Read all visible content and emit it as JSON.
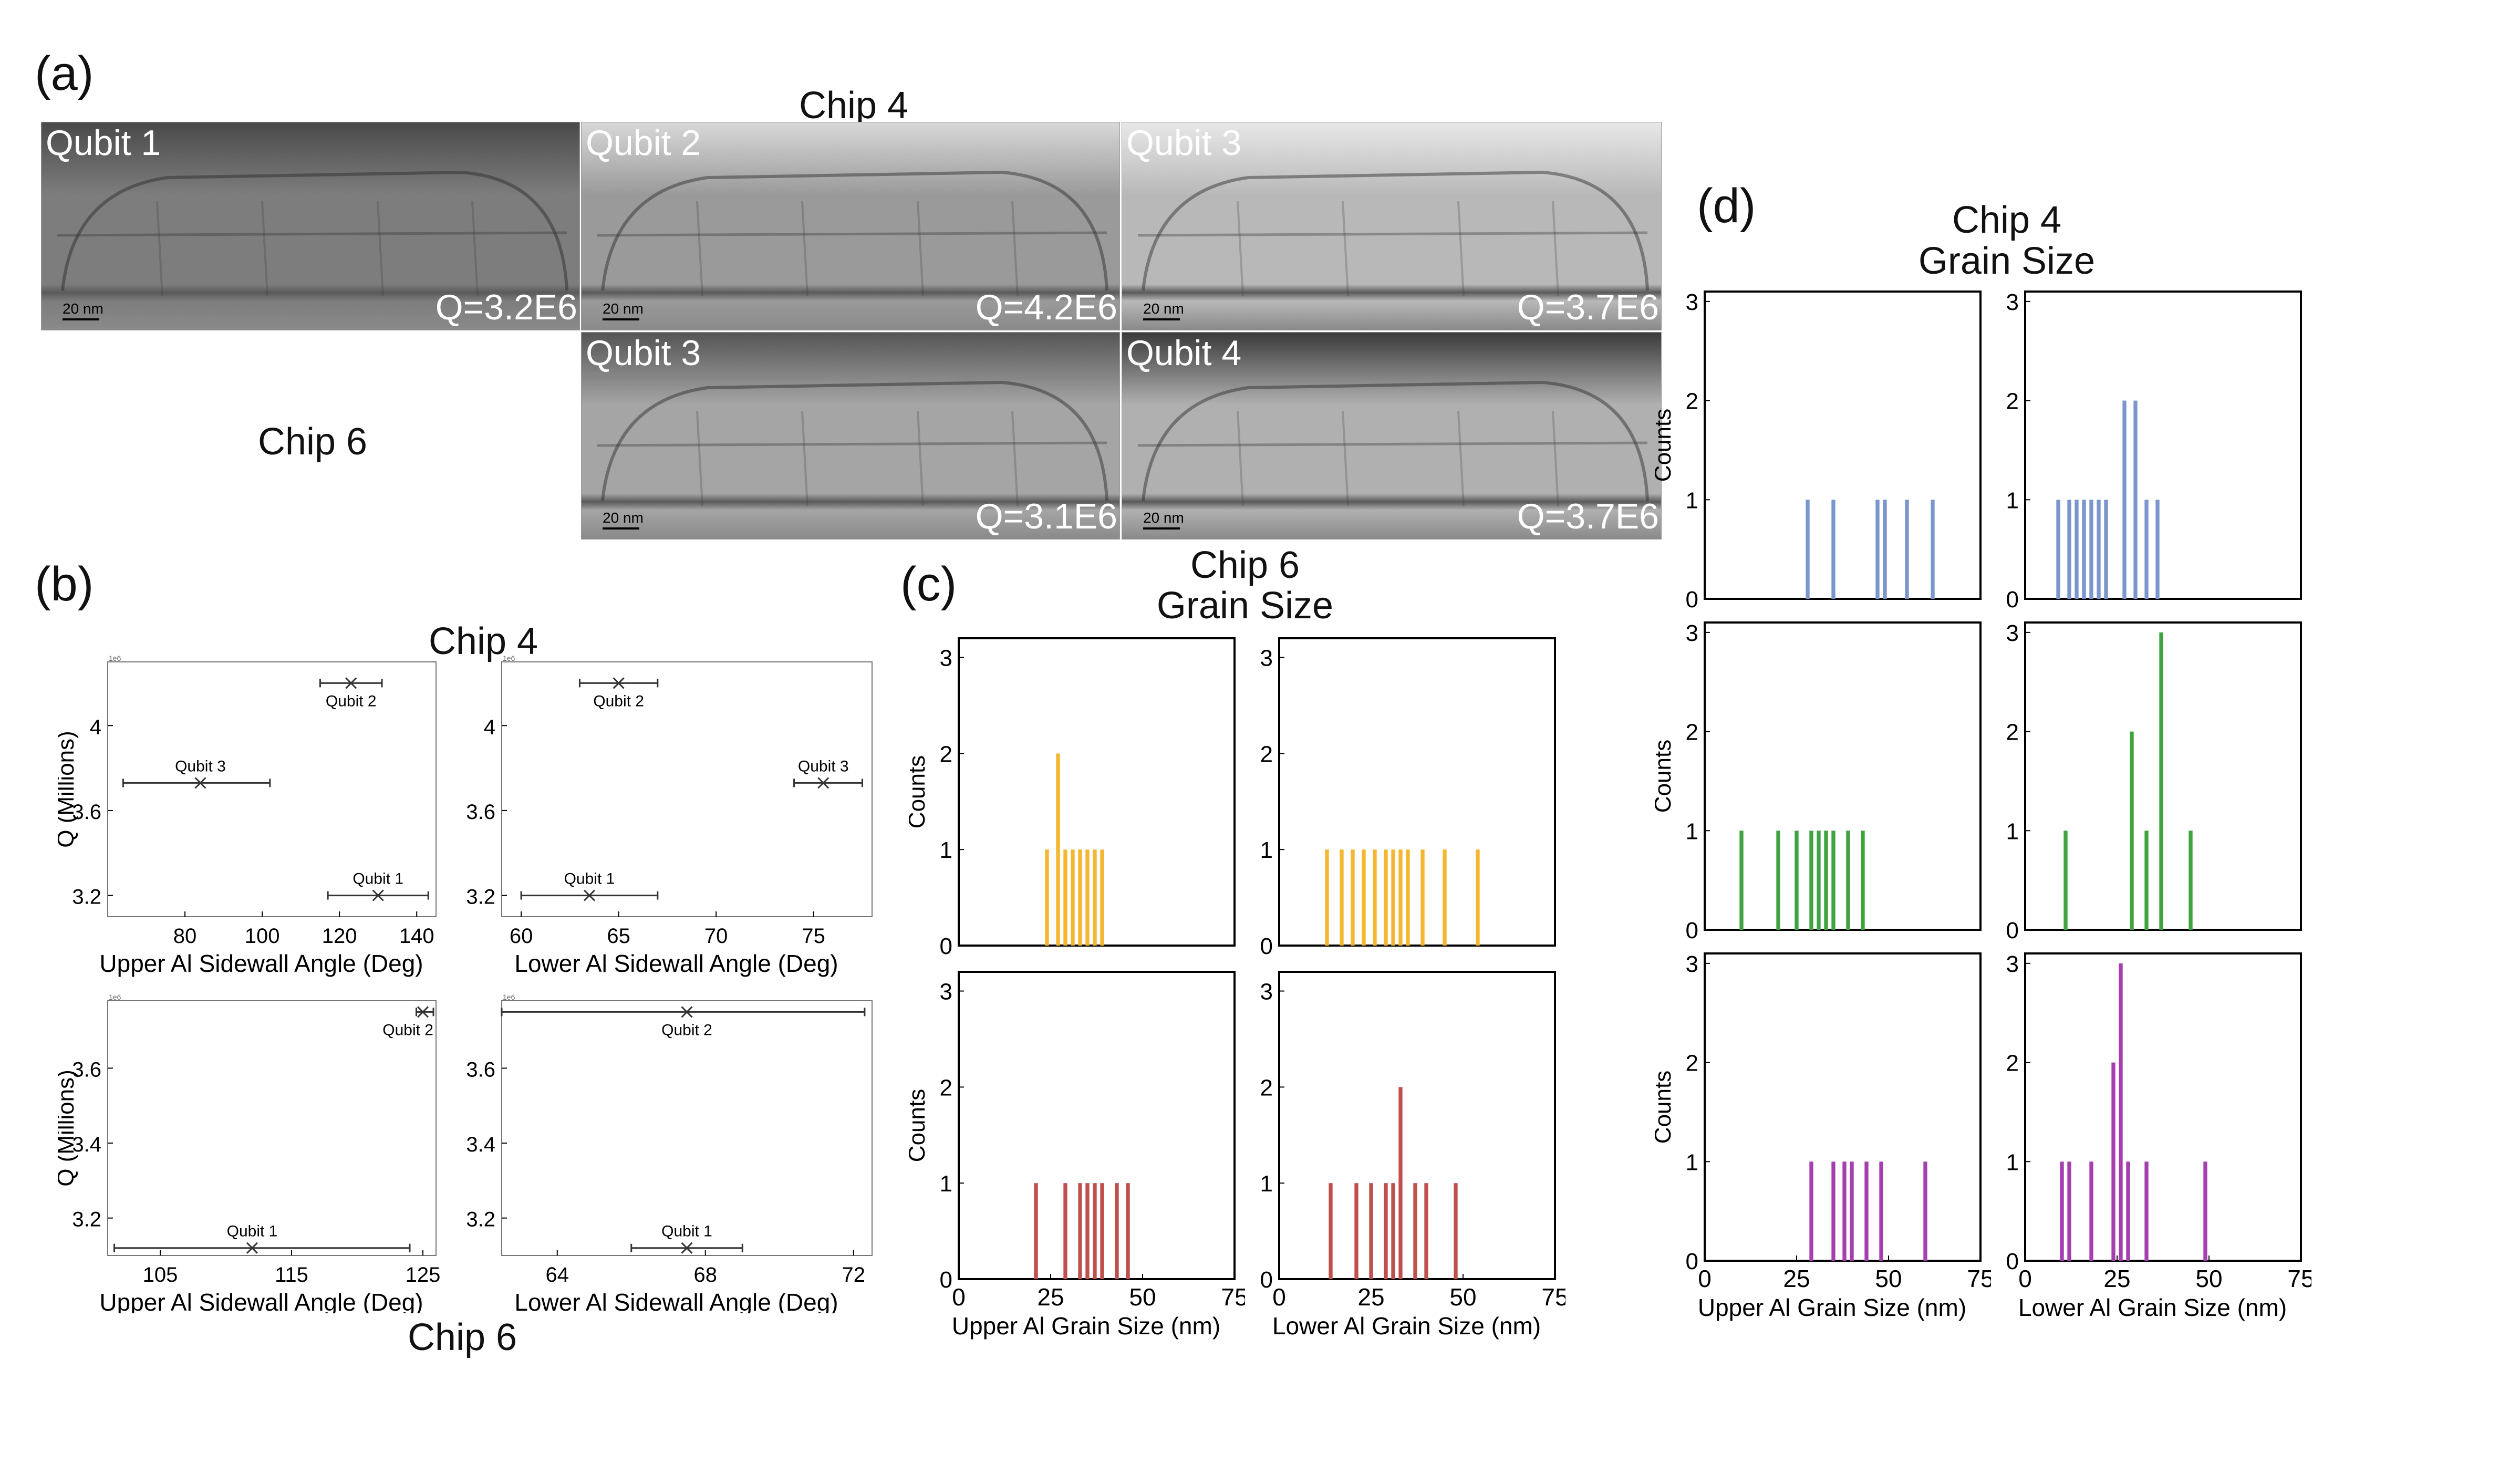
{
  "panel_a": {
    "label": "(a)",
    "chip4_title": "Chip 4",
    "chip6_title": "Chip 6",
    "scale_bar": "20 nm",
    "images": [
      {
        "qubit": "Qubit 1",
        "q": "Q=3.2E6",
        "chip": "Chip 4",
        "tone": "#7d7d7d",
        "cap": "#4a4a4a"
      },
      {
        "qubit": "Qubit 2",
        "q": "Q=4.2E6",
        "chip": "Chip 4",
        "tone": "#9a9a9a",
        "cap": "#d8d8d8"
      },
      {
        "qubit": "Qubit 3",
        "q": "Q=3.7E6",
        "chip": "Chip 4",
        "tone": "#b8b8b8",
        "cap": "#e8e8e8"
      },
      {
        "qubit": "Qubit 3",
        "q": "Q=3.1E6",
        "chip": "Chip 6",
        "tone": "#a5a5a5",
        "cap": "#555555"
      },
      {
        "qubit": "Qubit 4",
        "q": "Q=3.7E6",
        "chip": "Chip 6",
        "tone": "#b0b0b0",
        "cap": "#3a3a3a"
      }
    ]
  },
  "panel_b": {
    "label": "(b)",
    "chip4_title": "Chip 4",
    "chip6_title": "Chip 6",
    "ylabel": "Q (Millions)",
    "offset_label": "1e6"
  },
  "panel_c": {
    "label": "(c)",
    "title_line1": "Chip 6",
    "title_line2": "Grain Size"
  },
  "panel_d": {
    "label": "(d)",
    "title_line1": "Chip 4",
    "title_line2": "Grain Size"
  },
  "chart_data": [
    {
      "id": "b-chip4-upper",
      "type": "scatter",
      "xlabel": "Upper Al Sidewall Angle (Deg)",
      "ylabel": "Q (Millions)",
      "xlim": [
        60,
        145
      ],
      "ylim": [
        3.1,
        4.3
      ],
      "xticks": [
        80,
        100,
        120,
        140
      ],
      "yticks": [
        3.2,
        3.6,
        4.0
      ],
      "points": [
        {
          "label": "Qubit 2",
          "x": 123,
          "y": 4.2,
          "xerr": [
            115,
            131
          ]
        },
        {
          "label": "Qubit 3",
          "x": 84,
          "y": 3.73,
          "xerr": [
            64,
            102
          ]
        },
        {
          "label": "Qubit 1",
          "x": 130,
          "y": 3.2,
          "xerr": [
            117,
            143
          ]
        }
      ]
    },
    {
      "id": "b-chip4-lower",
      "type": "scatter",
      "xlabel": "Lower Al Sidewall Angle (Deg)",
      "ylabel": "",
      "xlim": [
        59,
        78
      ],
      "ylim": [
        3.1,
        4.3
      ],
      "xticks": [
        60,
        65,
        70,
        75
      ],
      "yticks": [
        3.2,
        3.6,
        4.0
      ],
      "points": [
        {
          "label": "Qubit 2",
          "x": 65,
          "y": 4.2,
          "xerr": [
            63,
            67
          ]
        },
        {
          "label": "Qubit 3",
          "x": 75.5,
          "y": 3.73,
          "xerr": [
            74,
            77.5
          ]
        },
        {
          "label": "Qubit 1",
          "x": 63.5,
          "y": 3.2,
          "xerr": [
            60,
            67
          ]
        }
      ]
    },
    {
      "id": "b-chip6-upper",
      "type": "scatter",
      "xlabel": "Upper Al Sidewall Angle (Deg)",
      "ylabel": "Q (Millions)",
      "xlim": [
        101,
        126
      ],
      "ylim": [
        3.1,
        3.78
      ],
      "xticks": [
        105,
        115,
        125
      ],
      "yticks": [
        3.2,
        3.4,
        3.6
      ],
      "points": [
        {
          "label": "Qubit 2",
          "x": 125,
          "y": 3.75,
          "xerr": [
            124.5,
            125.8
          ]
        },
        {
          "label": "Qubit 1",
          "x": 112,
          "y": 3.12,
          "xerr": [
            101.5,
            124
          ]
        }
      ]
    },
    {
      "id": "b-chip6-lower",
      "type": "scatter",
      "xlabel": "Lower Al Sidewall Angle (Deg)",
      "ylabel": "",
      "xlim": [
        62.5,
        72.5
      ],
      "ylim": [
        3.1,
        3.78
      ],
      "xticks": [
        64,
        68,
        72
      ],
      "yticks": [
        3.2,
        3.4,
        3.6
      ],
      "points": [
        {
          "label": "Qubit 2",
          "x": 67.5,
          "y": 3.75,
          "xerr": [
            62.5,
            72.3
          ]
        },
        {
          "label": "Qubit 1",
          "x": 67.5,
          "y": 3.12,
          "xerr": [
            66,
            69
          ]
        }
      ]
    },
    {
      "id": "c-upper-1",
      "type": "bar",
      "xlabel": "",
      "ylabel": "Counts",
      "xlim": [
        0,
        75
      ],
      "ylim": [
        0,
        3.2
      ],
      "yticks": [
        0,
        1,
        2,
        3
      ],
      "xticks": [],
      "color": "#f5b731",
      "x": [
        24,
        27,
        29,
        31,
        33,
        35,
        37,
        39
      ],
      "values": [
        1,
        2,
        1,
        1,
        1,
        1,
        1,
        1
      ]
    },
    {
      "id": "c-lower-1",
      "type": "bar",
      "xlabel": "",
      "ylabel": "",
      "xlim": [
        0,
        75
      ],
      "ylim": [
        0,
        3.2
      ],
      "yticks": [
        0,
        1,
        2,
        3
      ],
      "xticks": [],
      "color": "#f5b731",
      "x": [
        13,
        17,
        20,
        23,
        26,
        29,
        31,
        33,
        35,
        39,
        45,
        54
      ],
      "values": [
        1,
        1,
        1,
        1,
        1,
        1,
        1,
        1,
        1,
        1,
        1,
        1
      ]
    },
    {
      "id": "c-upper-2",
      "type": "bar",
      "xlabel": "Upper Al Grain Size (nm)",
      "ylabel": "Counts",
      "xlim": [
        0,
        75
      ],
      "ylim": [
        0,
        3.2
      ],
      "yticks": [
        0,
        1,
        2,
        3
      ],
      "xticks": [
        0,
        25,
        50,
        75
      ],
      "color": "#c0504d",
      "x": [
        21,
        29,
        33,
        35,
        37,
        39,
        43,
        46
      ],
      "values": [
        1,
        1,
        1,
        1,
        1,
        1,
        1,
        1
      ]
    },
    {
      "id": "c-lower-2",
      "type": "bar",
      "xlabel": "Lower Al Grain Size (nm)",
      "ylabel": "",
      "xlim": [
        0,
        75
      ],
      "ylim": [
        0,
        3.2
      ],
      "yticks": [
        0,
        1,
        2,
        3
      ],
      "xticks": [
        0,
        25,
        50,
        75
      ],
      "color": "#c0504d",
      "x": [
        14,
        21,
        25,
        29,
        31,
        33,
        37,
        40,
        48
      ],
      "values": [
        1,
        1,
        1,
        1,
        1,
        2,
        1,
        1,
        1
      ]
    },
    {
      "id": "d-upper-1",
      "type": "bar",
      "xlabel": "",
      "ylabel": "Counts",
      "xlim": [
        0,
        75
      ],
      "ylim": [
        0,
        3.1
      ],
      "yticks": [
        0,
        1,
        2,
        3
      ],
      "xticks": [],
      "color": "#7b96cc",
      "x": [
        28,
        35,
        47,
        49,
        55,
        62
      ],
      "values": [
        1,
        1,
        1,
        1,
        1,
        1
      ]
    },
    {
      "id": "d-lower-1",
      "type": "bar",
      "xlabel": "",
      "ylabel": "",
      "xlim": [
        0,
        75
      ],
      "ylim": [
        0,
        3.1
      ],
      "yticks": [
        0,
        1,
        2,
        3
      ],
      "xticks": [],
      "color": "#7b96cc",
      "x": [
        9,
        12,
        14,
        16,
        18,
        20,
        22,
        27,
        30,
        33,
        36
      ],
      "values": [
        1,
        1,
        1,
        1,
        1,
        1,
        1,
        2,
        2,
        1,
        1
      ]
    },
    {
      "id": "d-upper-2",
      "type": "bar",
      "xlabel": "",
      "ylabel": "Counts",
      "xlim": [
        0,
        75
      ],
      "ylim": [
        0,
        3.1
      ],
      "yticks": [
        0,
        1,
        2,
        3
      ],
      "xticks": [],
      "color": "#3fa33f",
      "x": [
        10,
        20,
        25,
        29,
        31,
        33,
        35,
        39,
        43
      ],
      "values": [
        1,
        1,
        1,
        1,
        1,
        1,
        1,
        1,
        1
      ]
    },
    {
      "id": "d-lower-2",
      "type": "bar",
      "xlabel": "",
      "ylabel": "",
      "xlim": [
        0,
        75
      ],
      "ylim": [
        0,
        3.1
      ],
      "yticks": [
        0,
        1,
        2,
        3
      ],
      "xticks": [],
      "color": "#3fa33f",
      "x": [
        11,
        29,
        33,
        37,
        45
      ],
      "values": [
        1,
        2,
        1,
        3,
        1
      ]
    },
    {
      "id": "d-upper-3",
      "type": "bar",
      "xlabel": "Upper Al Grain Size (nm)",
      "ylabel": "Counts",
      "xlim": [
        0,
        75
      ],
      "ylim": [
        0,
        3.1
      ],
      "yticks": [
        0,
        1,
        2,
        3
      ],
      "xticks": [
        0,
        25,
        50,
        75
      ],
      "color": "#a53fb0",
      "x": [
        29,
        35,
        38,
        40,
        44,
        48,
        60
      ],
      "values": [
        1,
        1,
        1,
        1,
        1,
        1,
        1
      ]
    },
    {
      "id": "d-lower-3",
      "type": "bar",
      "xlabel": "Lower Al Grain Size (nm)",
      "ylabel": "",
      "xlim": [
        0,
        75
      ],
      "ylim": [
        0,
        3.1
      ],
      "yticks": [
        0,
        1,
        2,
        3
      ],
      "xticks": [
        0,
        25,
        50,
        75
      ],
      "color": "#a53fb0",
      "x": [
        10,
        12,
        18,
        24,
        26,
        28,
        33,
        49
      ],
      "values": [
        1,
        1,
        1,
        2,
        3,
        1,
        1,
        1
      ]
    }
  ]
}
